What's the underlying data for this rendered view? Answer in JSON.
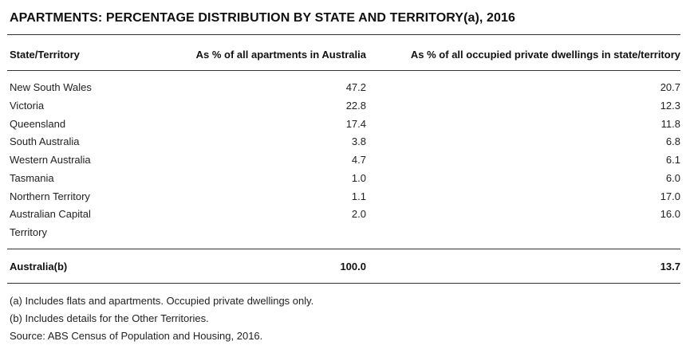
{
  "title": "APARTMENTS: PERCENTAGE DISTRIBUTION BY STATE AND TERRITORY(a), 2016",
  "header": {
    "state": "State/Territory",
    "col1": "As % of all apartments in Australia",
    "col2": "As % of all occupied private dwellings in state/territory"
  },
  "rows": [
    {
      "state": "New South Wales",
      "v1": "47.2",
      "v2": "20.7"
    },
    {
      "state": "Victoria",
      "v1": "22.8",
      "v2": "12.3"
    },
    {
      "state": "Queensland",
      "v1": "17.4",
      "v2": "11.8"
    },
    {
      "state": "South Australia",
      "v1": "3.8",
      "v2": "6.8"
    },
    {
      "state": "Western Australia",
      "v1": "4.7",
      "v2": "6.1"
    },
    {
      "state": "Tasmania",
      "v1": "1.0",
      "v2": "6.0"
    },
    {
      "state": "Northern Territory",
      "v1": "1.1",
      "v2": "17.0"
    },
    {
      "state": "Australian Capital Territory",
      "v1": "2.0",
      "v2": "16.0"
    }
  ],
  "total": {
    "state": "Australia(b)",
    "v1": "100.0",
    "v2": "13.7"
  },
  "notes": [
    "(a) Includes flats and apartments. Occupied private dwellings only.",
    "(b) Includes details for the Other Territories.",
    "Source: ABS Census of Population and Housing, 2016."
  ]
}
